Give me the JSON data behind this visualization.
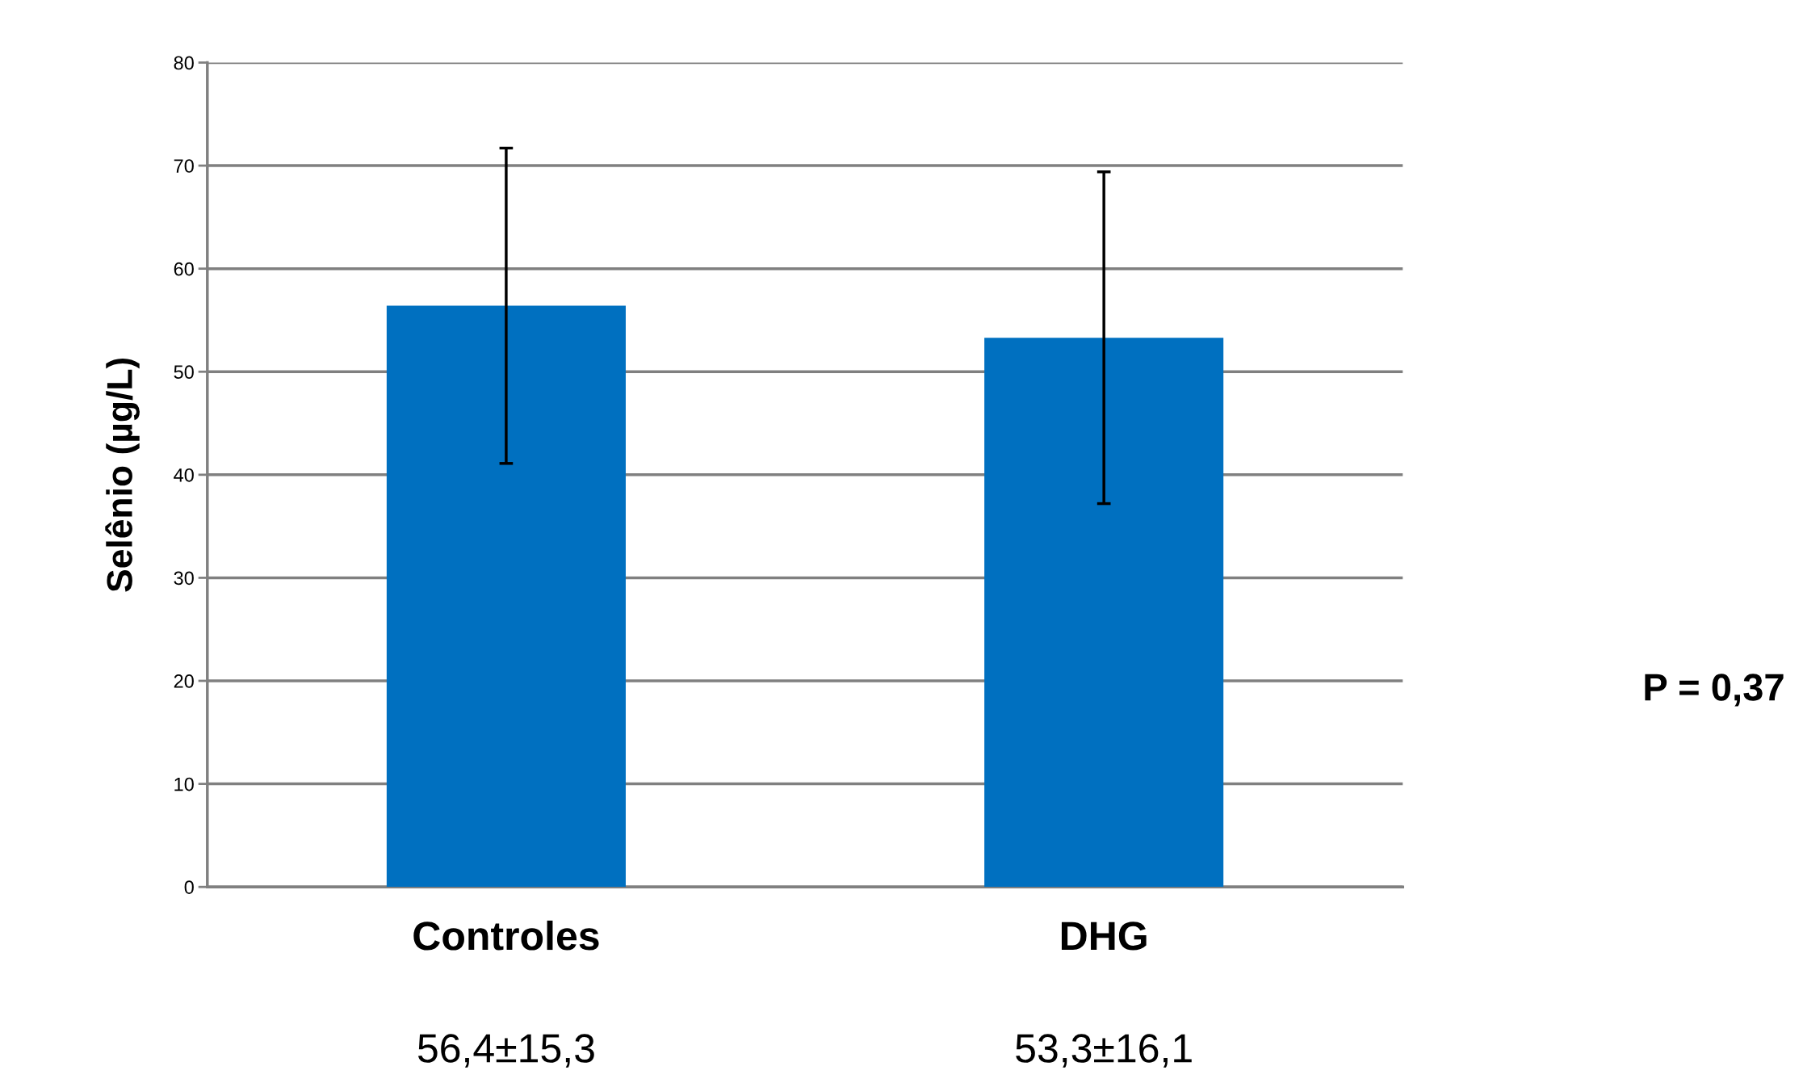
{
  "chart_data": {
    "type": "bar",
    "ylabel": "Selênio (µg/L)",
    "categories": [
      "Controles",
      "DHG"
    ],
    "values": [
      56.4,
      53.3
    ],
    "errors": [
      15.3,
      16.1
    ],
    "value_labels": [
      "56,4±15,3",
      "53,3±16,1"
    ],
    "color": "#0070c0",
    "ylim": [
      0,
      80
    ],
    "yticks": [
      0,
      10,
      20,
      30,
      40,
      50,
      60,
      70,
      80
    ],
    "grid": "y",
    "annotations": [
      "P = 0,37"
    ]
  }
}
